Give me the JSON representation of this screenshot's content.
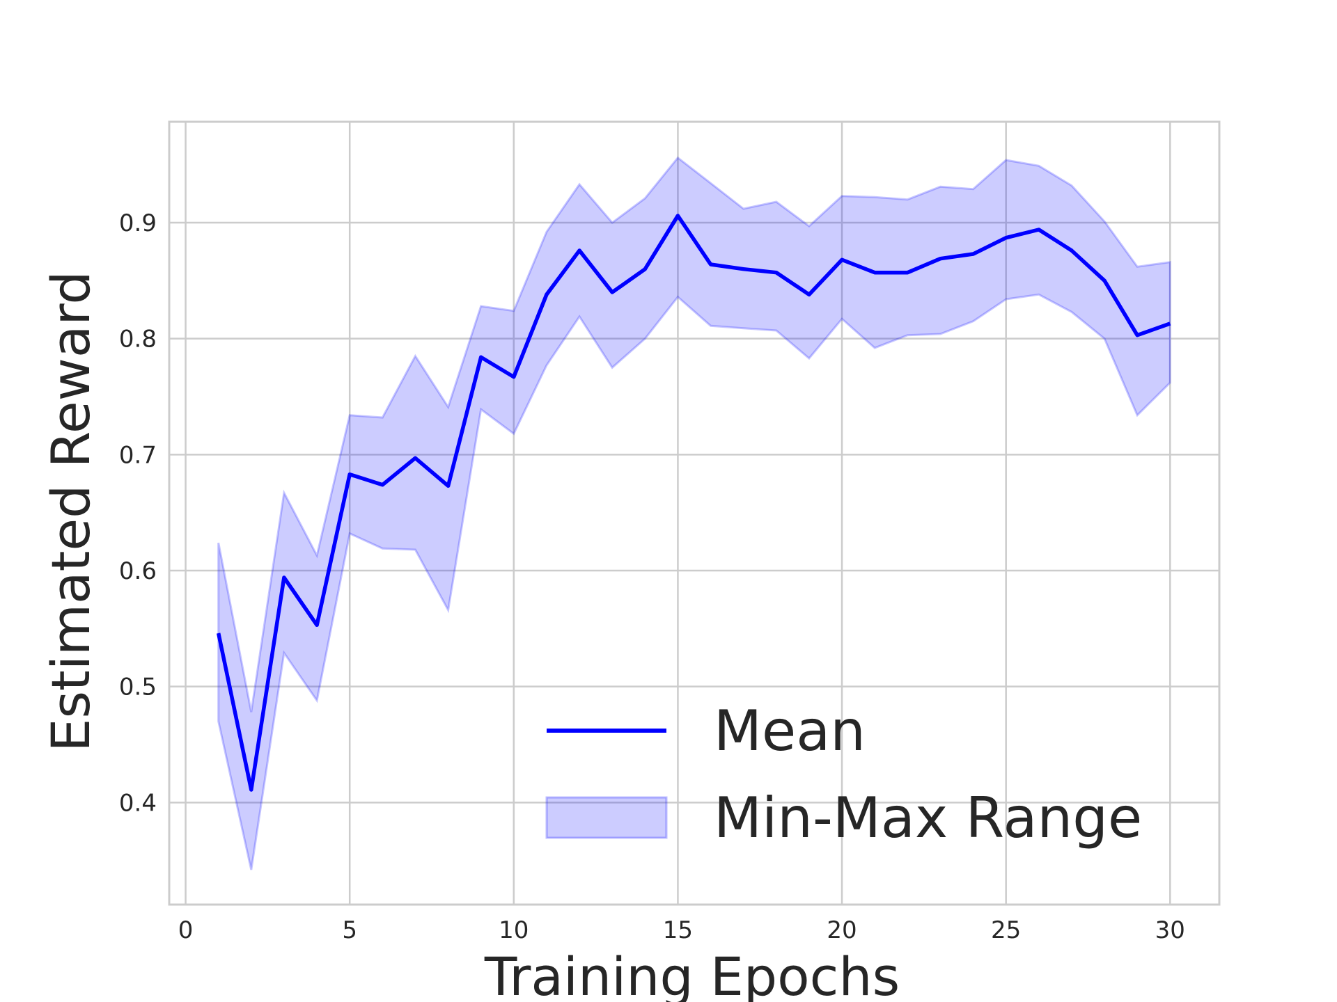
{
  "chart_data": {
    "type": "line",
    "title": "",
    "xlabel": "Training Epochs",
    "ylabel": "Estimated Reward",
    "xlim": [
      -0.5,
      31.5
    ],
    "ylim": [
      0.312,
      0.987
    ],
    "xticks": [
      0,
      5,
      10,
      15,
      20,
      25,
      30
    ],
    "yticks": [
      0.4,
      0.5,
      0.6,
      0.7,
      0.8,
      0.9
    ],
    "grid": true,
    "legend_position": "lower-right",
    "x": [
      1,
      2,
      3,
      4,
      5,
      6,
      7,
      8,
      9,
      10,
      11,
      12,
      13,
      14,
      15,
      16,
      17,
      18,
      19,
      20,
      21,
      22,
      23,
      24,
      25,
      26,
      27,
      28,
      29,
      30
    ],
    "series": [
      {
        "name": "Mean",
        "kind": "line",
        "color": "#0000ff",
        "values": [
          0.546,
          0.411,
          0.594,
          0.553,
          0.683,
          0.674,
          0.697,
          0.673,
          0.784,
          0.767,
          0.838,
          0.876,
          0.84,
          0.86,
          0.906,
          0.864,
          0.86,
          0.857,
          0.838,
          0.868,
          0.857,
          0.857,
          0.869,
          0.873,
          0.887,
          0.894,
          0.876,
          0.85,
          0.803,
          0.813
        ]
      },
      {
        "name": "Min-Max Range",
        "kind": "band",
        "color": "#0000ff",
        "opacity": 0.2,
        "min": [
          0.47,
          0.342,
          0.529,
          0.488,
          0.632,
          0.619,
          0.618,
          0.566,
          0.739,
          0.718,
          0.777,
          0.819,
          0.775,
          0.8,
          0.836,
          0.811,
          0.809,
          0.807,
          0.783,
          0.817,
          0.792,
          0.803,
          0.804,
          0.815,
          0.834,
          0.838,
          0.823,
          0.8,
          0.734,
          0.762
        ],
        "max": [
          0.624,
          0.478,
          0.667,
          0.613,
          0.734,
          0.732,
          0.785,
          0.741,
          0.828,
          0.824,
          0.892,
          0.933,
          0.9,
          0.921,
          0.956,
          0.934,
          0.912,
          0.918,
          0.897,
          0.923,
          0.922,
          0.92,
          0.931,
          0.929,
          0.954,
          0.949,
          0.932,
          0.901,
          0.862,
          0.866
        ]
      }
    ]
  }
}
